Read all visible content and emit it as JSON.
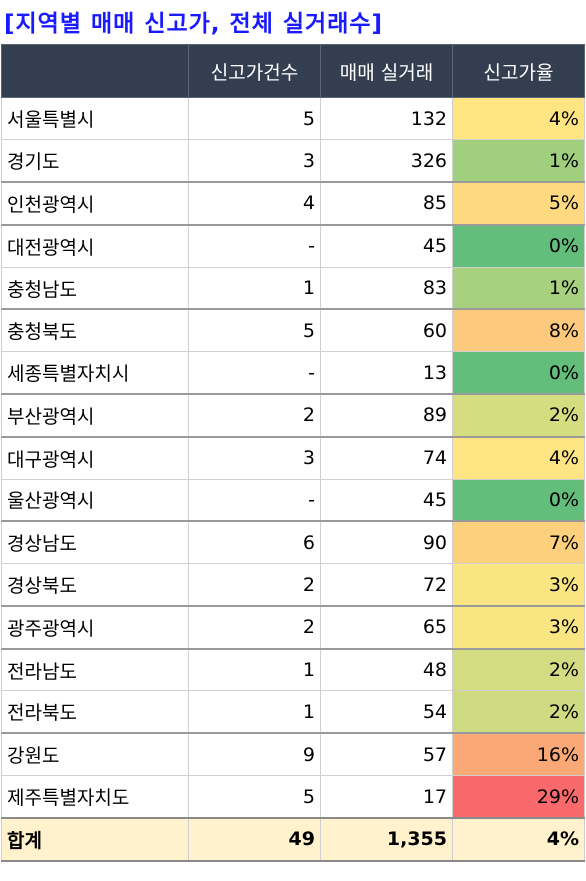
{
  "header": {
    "title": "[지역별 매매 신고가, 전체 실거래수]"
  },
  "table": {
    "columns": [
      "",
      "신고가건수",
      "매매 실거래",
      "신고가율"
    ],
    "rows": [
      [
        "서울특별시",
        "5",
        "132",
        "4%"
      ],
      [
        "경기도",
        "3",
        "326",
        "1%"
      ],
      [
        "인천광역시",
        "4",
        "85",
        "5%"
      ],
      [
        "대전광역시",
        "-",
        "45",
        "0%"
      ],
      [
        "충청남도",
        "1",
        "83",
        "1%"
      ],
      [
        "충청북도",
        "5",
        "60",
        "8%"
      ],
      [
        "세종특별자치시",
        "-",
        "13",
        "0%"
      ],
      [
        "부산광역시",
        "2",
        "89",
        "2%"
      ],
      [
        "대구광역시",
        "3",
        "74",
        "4%"
      ],
      [
        "울산광역시",
        "-",
        "45",
        "0%"
      ],
      [
        "경상남도",
        "6",
        "90",
        "7%"
      ],
      [
        "경상북도",
        "2",
        "72",
        "3%"
      ],
      [
        "광주광역시",
        "2",
        "65",
        "3%"
      ],
      [
        "전라남도",
        "1",
        "48",
        "2%"
      ],
      [
        "전라북도",
        "1",
        "54",
        "2%"
      ],
      [
        "강원도",
        "9",
        "57",
        "16%"
      ],
      [
        "제주특별자치도",
        "5",
        "17",
        "29%"
      ]
    ],
    "rate_colors": [
      "#fee582",
      "#a0cf7e",
      "#fed980",
      "#63be7b",
      "#a7d17e",
      "#fdc97c",
      "#63be7b",
      "#d6dd81",
      "#fee482",
      "#63be7b",
      "#fdd07e",
      "#fae583",
      "#fae583",
      "#d3dc80",
      "#cfdb80",
      "#fba877",
      "#f8696b"
    ],
    "total": [
      "합계",
      "49",
      "1,355",
      "4%"
    ]
  }
}
